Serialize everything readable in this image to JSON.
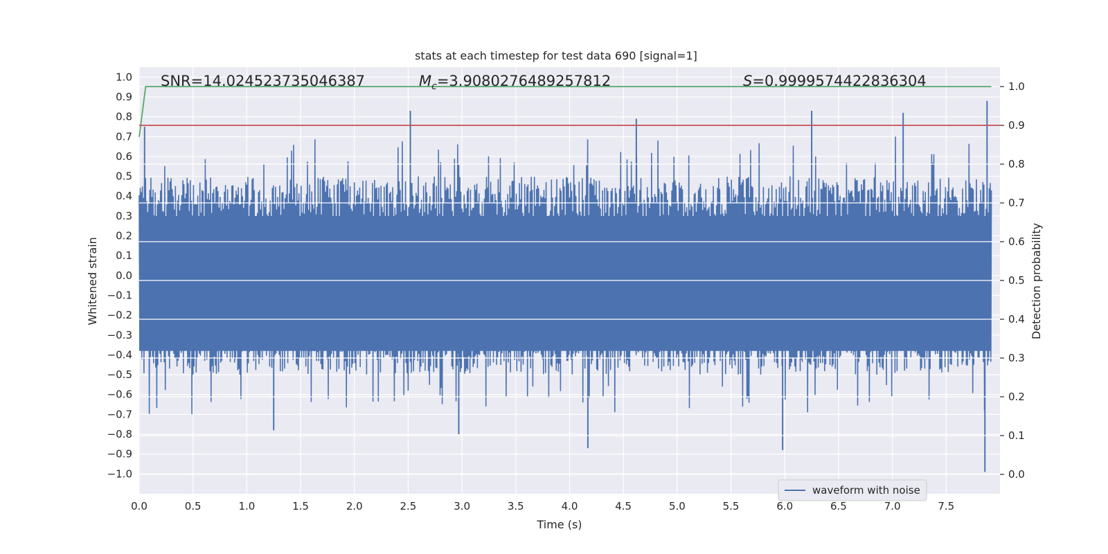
{
  "chart_data": {
    "type": "line",
    "title": "stats at each timestep for test data 690 [signal=1]",
    "xlabel": "Time (s)",
    "ylabel_left": "Whitened strain",
    "ylabel_right": "Detection probability",
    "xlim": [
      0.0,
      8.0
    ],
    "ylim_left": [
      -1.1,
      1.05
    ],
    "ylim_right": [
      -0.05,
      1.05
    ],
    "xticks": [
      "0.0",
      "0.5",
      "1.0",
      "1.5",
      "2.0",
      "2.5",
      "3.0",
      "3.5",
      "4.0",
      "4.5",
      "5.0",
      "5.5",
      "6.0",
      "6.5",
      "7.0",
      "7.5"
    ],
    "xtick_values": [
      0.0,
      0.5,
      1.0,
      1.5,
      2.0,
      2.5,
      3.0,
      3.5,
      4.0,
      4.5,
      5.0,
      5.5,
      6.0,
      6.5,
      7.0,
      7.5
    ],
    "yticks_left": [
      "1.0",
      "0.9",
      "0.8",
      "0.7",
      "0.6",
      "0.5",
      "0.4",
      "0.3",
      "0.2",
      "0.1",
      "0.0",
      "−0.1",
      "−0.2",
      "−0.3",
      "−0.4",
      "−0.5",
      "−0.6",
      "−0.7",
      "−0.8",
      "−0.9",
      "−1.0"
    ],
    "ytick_values_left": [
      1.0,
      0.9,
      0.8,
      0.7,
      0.6,
      0.5,
      0.4,
      0.3,
      0.2,
      0.1,
      0.0,
      -0.1,
      -0.2,
      -0.3,
      -0.4,
      -0.5,
      -0.6,
      -0.7,
      -0.8,
      -0.9,
      -1.0
    ],
    "yticks_right": [
      "1.0",
      "0.9",
      "0.8",
      "0.7",
      "0.6",
      "0.5",
      "0.4",
      "0.3",
      "0.2",
      "0.1",
      "0.0"
    ],
    "ytick_values_right": [
      1.0,
      0.9,
      0.8,
      0.7,
      0.6,
      0.5,
      0.4,
      0.3,
      0.2,
      0.1,
      0.0
    ],
    "annotations": {
      "snr": "SNR=14.024523735046387",
      "mc_symbol": "M",
      "mc_subscript": "c",
      "mc_value": "=3.9080276489257812",
      "s_symbol": "S",
      "s_value": "=0.9999574422836304"
    },
    "legend": {
      "label": "waveform with noise",
      "placement": "lower-right"
    },
    "colors": {
      "waveform": "#4c72b0",
      "probability": "#55a868",
      "threshold": "#c44e52",
      "background": "#eaeaf2",
      "grid": "#ffffff"
    },
    "series": [
      {
        "name": "waveform with noise",
        "axis": "left",
        "envelope": "noise strain spanning roughly -0.4 to 0.5 with spikes reaching about 0.83 and -0.99",
        "peaks": [
          {
            "x": 0.05,
            "y": 0.75
          },
          {
            "x": 2.52,
            "y": 0.83
          },
          {
            "x": 4.62,
            "y": 0.79
          },
          {
            "x": 6.25,
            "y": 0.83
          },
          {
            "x": 7.1,
            "y": 0.82
          },
          {
            "x": 7.88,
            "y": 0.88
          },
          {
            "x": 1.25,
            "y": -0.78
          },
          {
            "x": 2.97,
            "y": -0.8
          },
          {
            "x": 4.17,
            "y": -0.87
          },
          {
            "x": 5.98,
            "y": -0.88
          },
          {
            "x": 7.86,
            "y": -0.99
          }
        ]
      },
      {
        "axis": "right",
        "x": [
          0.0,
          0.06,
          7.92
        ],
        "values": [
          0.87,
          1.0,
          1.0
        ]
      },
      {
        "axis": "right",
        "x": [
          0.0,
          8.0
        ],
        "values": [
          0.9,
          0.9
        ]
      }
    ]
  }
}
